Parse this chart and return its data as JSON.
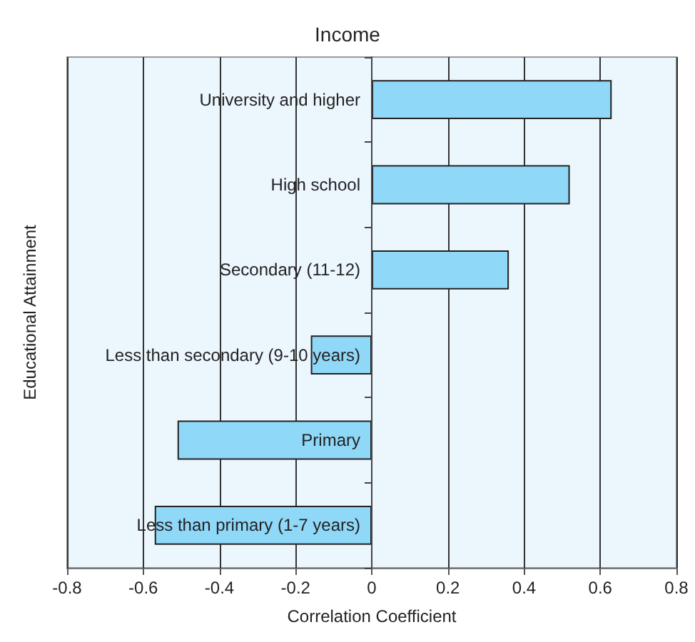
{
  "chart_data": {
    "type": "bar",
    "orientation": "horizontal",
    "title": "Income",
    "xlabel": "Correlation Coefficient",
    "ylabel": "Educational Attainment",
    "categories": [
      "University and higher",
      "High school",
      "Secondary (11-12)",
      "Less than secondary (9-10 years)",
      "Primary",
      "Less than primary (1-7 years)"
    ],
    "values": [
      0.63,
      0.52,
      0.36,
      -0.16,
      -0.51,
      -0.57
    ],
    "color": "#8fd8f8",
    "xlim": [
      -0.8,
      0.8
    ],
    "xticks": [
      -0.8,
      -0.6,
      -0.4,
      -0.2,
      0,
      0.2,
      0.4,
      0.6,
      0.8
    ],
    "grid": "x"
  }
}
